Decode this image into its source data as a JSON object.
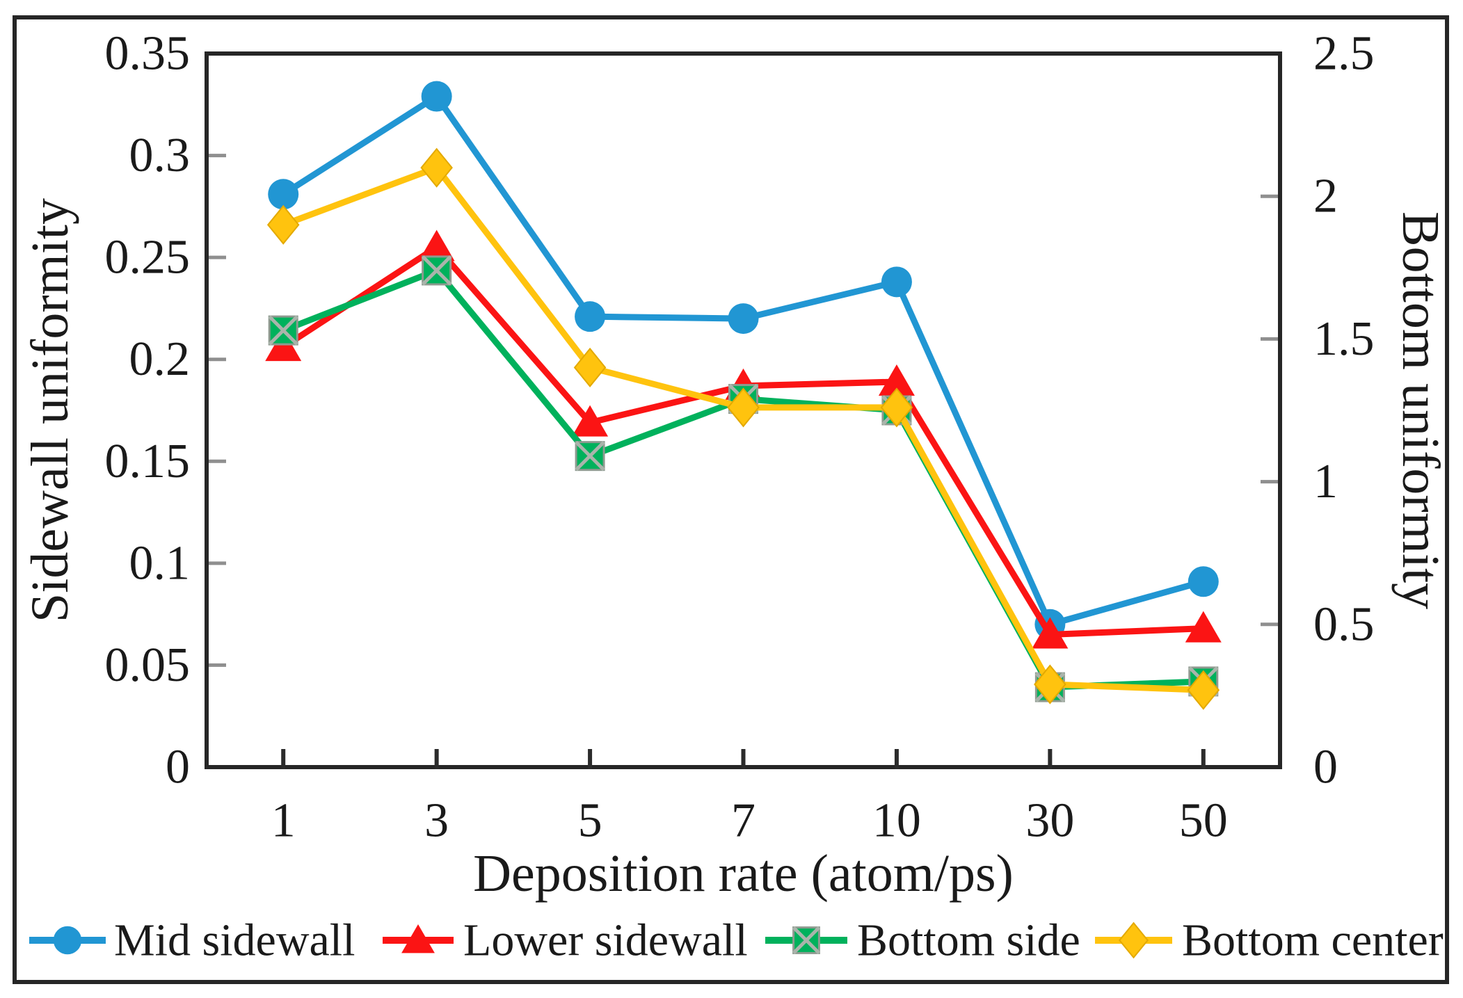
{
  "figure": {
    "background": "#ffffff",
    "frame_color": "#262626",
    "axis_color": "#262626",
    "y_tick_color": "#8f8f8f",
    "x_tick_color": "#2b2b2b",
    "text_color": "#1a1a1a"
  },
  "chart_data": {
    "type": "line",
    "title": "",
    "x": {
      "label": "Deposition rate (atom/ps)",
      "categories": [
        "1",
        "3",
        "5",
        "7",
        "10",
        "30",
        "50"
      ]
    },
    "left_axis": {
      "label": "Sidewall uniformity",
      "min": 0,
      "max": 0.35,
      "tick_step": 0.05,
      "tick_labels": [
        "0",
        "0.05",
        "0.1",
        "0.15",
        "0.2",
        "0.25",
        "0.3",
        "0.35"
      ]
    },
    "right_axis": {
      "label": "Bottom uniformity",
      "min": 0,
      "max": 2.5,
      "tick_step": 0.5,
      "tick_labels": [
        "0",
        "0.5",
        "1",
        "1.5",
        "2",
        "2.5"
      ]
    },
    "grid": false,
    "legend_position": "bottom",
    "series": [
      {
        "name": "Mid sidewall",
        "axis": "left",
        "color": "#2196d3",
        "marker": "circle",
        "values": [
          0.281,
          0.329,
          0.221,
          0.22,
          0.238,
          0.07,
          0.091
        ]
      },
      {
        "name": "Lower sidewall",
        "axis": "left",
        "color": "#fb1414",
        "marker": "triangle",
        "values": [
          0.206,
          0.255,
          0.169,
          0.187,
          0.189,
          0.065,
          0.068
        ]
      },
      {
        "name": "Bottom side",
        "axis": "right",
        "color": "#00b15c",
        "marker": "square-x",
        "values": [
          1.53,
          1.74,
          1.09,
          1.29,
          1.25,
          0.28,
          0.3
        ]
      },
      {
        "name": "Bottom center",
        "axis": "right",
        "color": "#ffc30e",
        "marker": "diamond",
        "values": [
          1.9,
          2.1,
          1.4,
          1.26,
          1.26,
          0.29,
          0.27
        ]
      }
    ]
  }
}
